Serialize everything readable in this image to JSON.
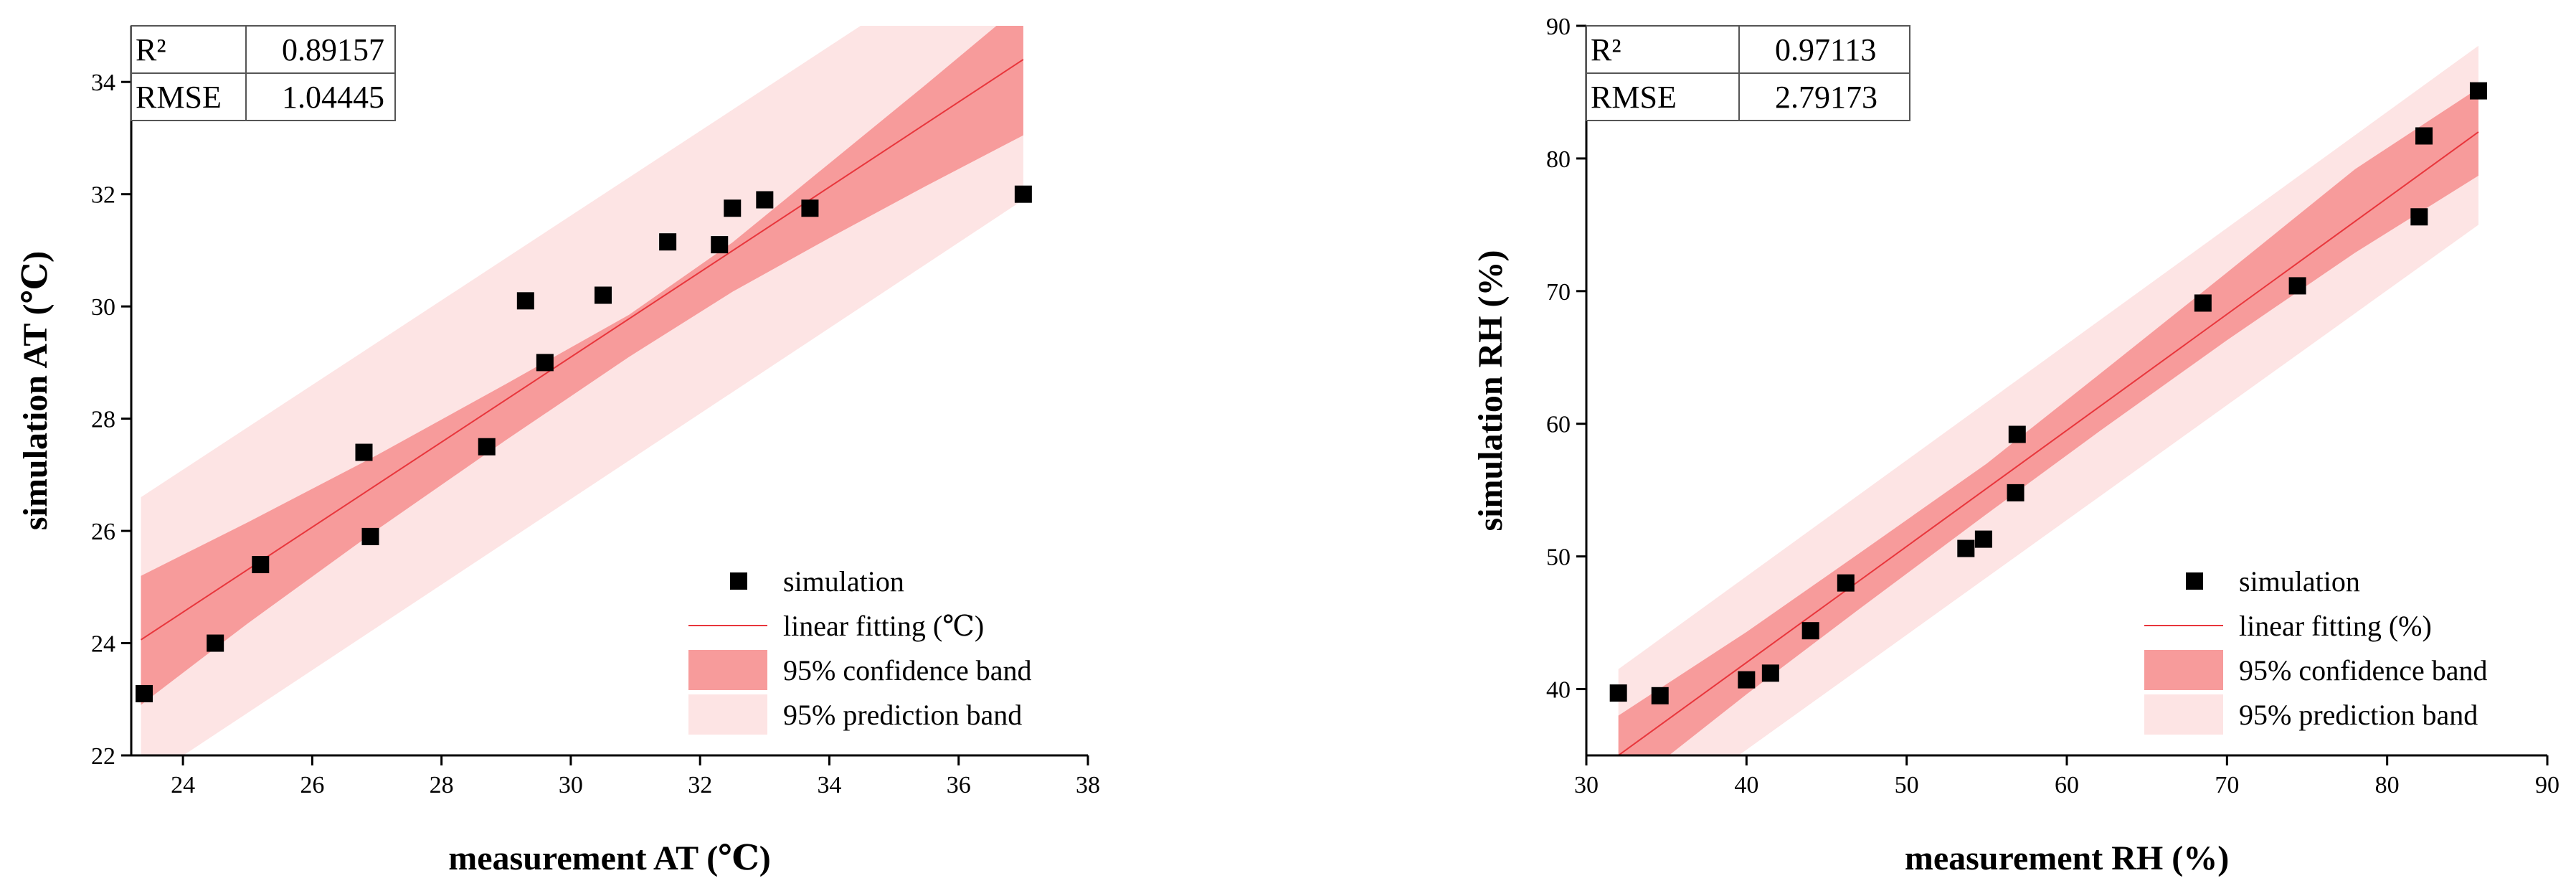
{
  "chart_data": [
    {
      "id": "at",
      "type": "scatter",
      "xlabel": "measurement AT (℃)",
      "ylabel": "simulation AT (℃)",
      "xlim": [
        23.2,
        38
      ],
      "ylim": [
        22,
        35
      ],
      "xticks": [
        24,
        26,
        28,
        30,
        32,
        34,
        36,
        38
      ],
      "yticks": [
        22,
        24,
        26,
        28,
        30,
        32,
        34
      ],
      "stats": [
        {
          "label": "R²",
          "value": "0.89157"
        },
        {
          "label": "RMSE",
          "value": "1.04445"
        }
      ],
      "fit": {
        "x_start": 23.35,
        "x_end": 37.0,
        "y_start": 24.06,
        "y_end": 34.4
      },
      "confidence_band": {
        "x": [
          23.35,
          25.0,
          27.0,
          29.0,
          30.9,
          32.5,
          34.0,
          35.5,
          37.0
        ],
        "lower": [
          22.9,
          24.35,
          26.02,
          27.62,
          29.1,
          30.26,
          31.22,
          32.15,
          33.05
        ],
        "upper": [
          25.2,
          26.15,
          27.35,
          28.62,
          29.85,
          31.14,
          32.55,
          33.96,
          35.4
        ]
      },
      "prediction_band": {
        "x": [
          23.35,
          37.0
        ],
        "lower": [
          21.5,
          31.9
        ],
        "upper": [
          26.6,
          36.9
        ]
      },
      "points": [
        {
          "x": 23.4,
          "y": 23.1
        },
        {
          "x": 24.5,
          "y": 24.0
        },
        {
          "x": 25.2,
          "y": 25.4
        },
        {
          "x": 26.8,
          "y": 27.4
        },
        {
          "x": 26.9,
          "y": 25.9
        },
        {
          "x": 28.7,
          "y": 27.5
        },
        {
          "x": 29.3,
          "y": 30.1
        },
        {
          "x": 29.6,
          "y": 29.0
        },
        {
          "x": 30.5,
          "y": 30.2
        },
        {
          "x": 31.5,
          "y": 31.15
        },
        {
          "x": 32.3,
          "y": 31.1
        },
        {
          "x": 32.5,
          "y": 31.75
        },
        {
          "x": 33.0,
          "y": 31.9
        },
        {
          "x": 33.7,
          "y": 31.75
        },
        {
          "x": 37.0,
          "y": 32.0
        }
      ],
      "legend": [
        {
          "key": "simulation",
          "label": "simulation"
        },
        {
          "key": "fit",
          "label": "linear fitting (℃)"
        },
        {
          "key": "confidence",
          "label": "95% confidence band"
        },
        {
          "key": "prediction",
          "label": "95% prediction band"
        }
      ]
    },
    {
      "id": "rh",
      "type": "scatter",
      "xlabel": "measurement RH (%)",
      "ylabel": "simulation RH (%)",
      "xlim": [
        30,
        90
      ],
      "ylim": [
        35,
        90
      ],
      "xticks": [
        30,
        40,
        50,
        60,
        70,
        80,
        90
      ],
      "yticks": [
        40,
        50,
        60,
        70,
        80,
        90
      ],
      "stats": [
        {
          "label": "R²",
          "value": "0.97113"
        },
        {
          "label": "RMSE",
          "value": "2.79173"
        }
      ],
      "fit": {
        "x_start": 32,
        "x_end": 85.7,
        "y_start": 35.0,
        "y_end": 82.0
      },
      "confidence_band": {
        "x": [
          32,
          40,
          47,
          55,
          62,
          70,
          78,
          85.7
        ],
        "lower": [
          32.0,
          39.6,
          46.0,
          53.2,
          59.4,
          66.3,
          72.9,
          78.7
        ],
        "upper": [
          38.0,
          44.3,
          50.2,
          57.0,
          63.7,
          71.4,
          79.2,
          85.3
        ]
      },
      "prediction_band": {
        "x": [
          32,
          85.7
        ],
        "lower": [
          28.5,
          75.0
        ],
        "upper": [
          41.5,
          88.5
        ]
      },
      "points": [
        {
          "x": 32.0,
          "y": 39.7
        },
        {
          "x": 34.6,
          "y": 39.5
        },
        {
          "x": 40.0,
          "y": 40.7
        },
        {
          "x": 41.5,
          "y": 41.2
        },
        {
          "x": 44.0,
          "y": 44.4
        },
        {
          "x": 46.2,
          "y": 48.0
        },
        {
          "x": 53.7,
          "y": 50.6
        },
        {
          "x": 54.8,
          "y": 51.3
        },
        {
          "x": 56.8,
          "y": 54.8
        },
        {
          "x": 56.9,
          "y": 59.2
        },
        {
          "x": 68.5,
          "y": 69.1
        },
        {
          "x": 74.4,
          "y": 70.4
        },
        {
          "x": 82.0,
          "y": 75.6
        },
        {
          "x": 82.3,
          "y": 81.7
        },
        {
          "x": 85.7,
          "y": 85.1
        }
      ],
      "legend": [
        {
          "key": "simulation",
          "label": "simulation"
        },
        {
          "key": "fit",
          "label": "linear fitting (%)"
        },
        {
          "key": "confidence",
          "label": "95% confidence band"
        },
        {
          "key": "prediction",
          "label": "95% prediction band"
        }
      ]
    }
  ],
  "colors": {
    "point": "#000000",
    "fit_line": "#e8363c",
    "confidence_band": "#f79b9b",
    "prediction_band": "#fde4e4",
    "axis": "#000000"
  }
}
